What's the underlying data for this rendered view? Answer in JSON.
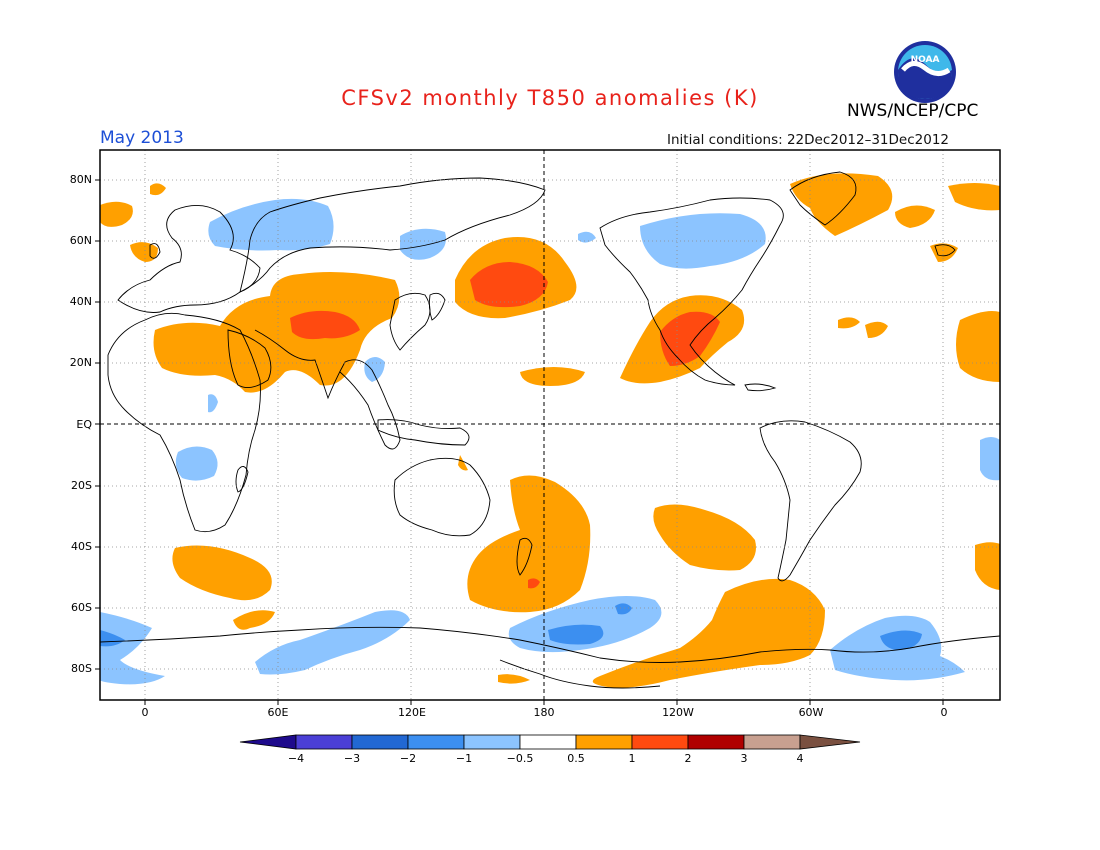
{
  "header": {
    "title": "CFSv2 monthly T850 anomalies (K)",
    "agency": "NWS/NCEP/CPC",
    "logo_text": "NOAA",
    "valid_month": "May 2013",
    "initial_conditions": "Initial conditions: 22Dec2012–31Dec2012"
  },
  "map": {
    "projection": "equirectangular",
    "lat_range": [
      -90,
      90
    ],
    "lon_range": [
      -20,
      370
    ],
    "lat_labels": [
      "80N",
      "60N",
      "40N",
      "20N",
      "EQ",
      "20S",
      "40S",
      "60S",
      "80S"
    ],
    "lon_labels": [
      "0",
      "60E",
      "120E",
      "180",
      "120W",
      "60W",
      "0"
    ],
    "grid": "dotted",
    "reference_lines": [
      "EQ",
      "180"
    ]
  },
  "legend": {
    "labels": [
      "−4",
      "−3",
      "−2",
      "−1",
      "−0.5",
      "0.5",
      "1",
      "2",
      "3",
      "4"
    ],
    "colors": [
      "#1e0a8c",
      "#4b3fd6",
      "#2268d3",
      "#3c8ff0",
      "#8cc4ff",
      "#ffffff",
      "#ffa000",
      "#ff4a10",
      "#b00000",
      "#c8a090",
      "#7a5040"
    ]
  },
  "colors": {
    "title": "#e8221b",
    "month": "#1d4fd6",
    "warm_1": "#ffa000",
    "warm_2": "#ff4a10",
    "cool_1": "#8cc4ff",
    "cool_2": "#3c8ff0"
  }
}
